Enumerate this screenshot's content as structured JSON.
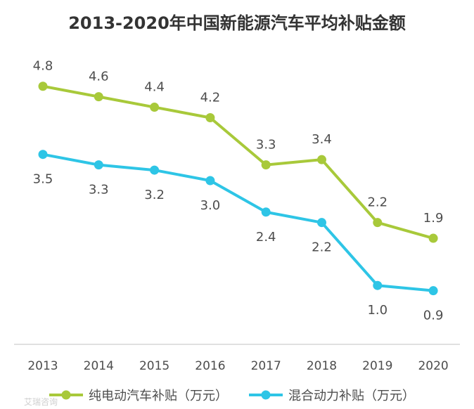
{
  "chart_data": {
    "type": "line",
    "title": "2013-2020年中国新能源汽车平均补贴金额",
    "categories": [
      "2013",
      "2014",
      "2015",
      "2016",
      "2017",
      "2018",
      "2019",
      "2020"
    ],
    "series": [
      {
        "name": "纯电动汽车补贴（万元）",
        "color": "#a8c93a",
        "values": [
          4.8,
          4.6,
          4.4,
          4.2,
          3.3,
          3.4,
          2.2,
          1.9
        ],
        "labels": [
          "4.8",
          "4.6",
          "4.4",
          "4.2",
          "3.3",
          "3.4",
          "2.2",
          "1.9"
        ]
      },
      {
        "name": "混合动力补贴（万元）",
        "color": "#2ec5e6",
        "values": [
          3.5,
          3.3,
          3.2,
          3.0,
          2.4,
          2.2,
          1.0,
          0.9
        ],
        "labels": [
          "3.5",
          "3.3",
          "3.2",
          "3.0",
          "2.4",
          "2.2",
          "1.0",
          "0.9"
        ]
      }
    ],
    "xlabel": "",
    "ylabel": "",
    "ylim": [
      0,
      5.5
    ],
    "grid": false,
    "legend_position": "bottom"
  },
  "watermark": "艾瑞咨询"
}
